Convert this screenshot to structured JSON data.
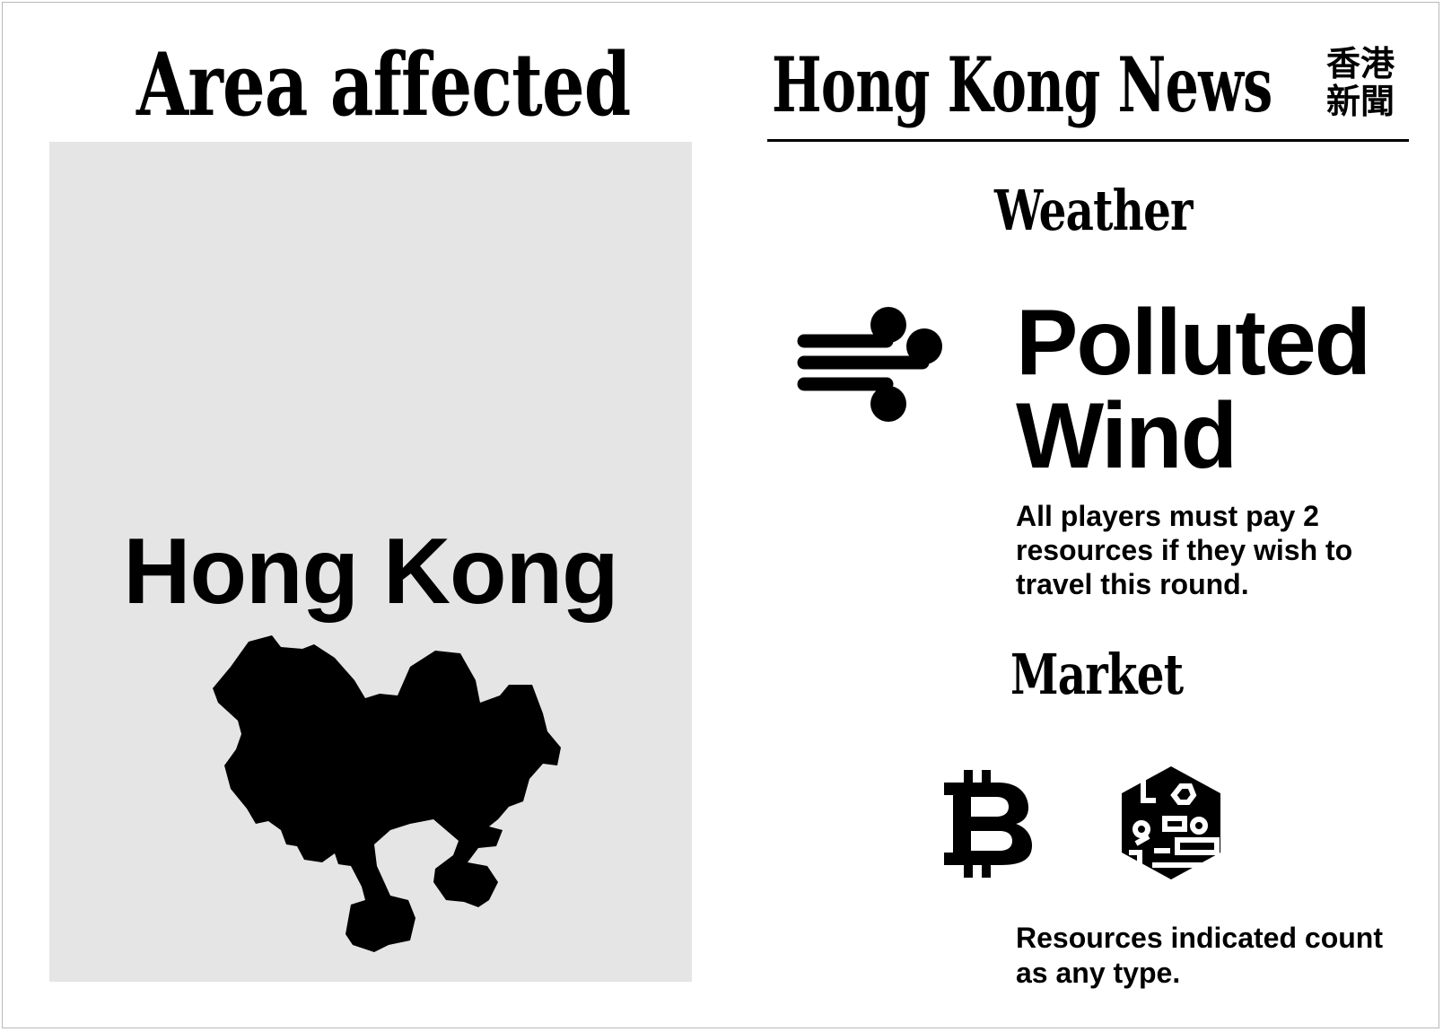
{
  "left_panel": {
    "title": "Area affected",
    "map_label": "Hong Kong",
    "map_icon": "hong-kong-map-silhouette"
  },
  "news": {
    "title": "Hong Kong News",
    "title_cjk": "香港新聞"
  },
  "weather": {
    "heading": "Weather",
    "icon": "wind-icon",
    "event_name": "Polluted Wind",
    "description": "All players must pay 2 resources if they wish to travel this round."
  },
  "market": {
    "heading": "Market",
    "icons": [
      "bitcoin-icon",
      "tech-resource-hexagon-icon"
    ],
    "note": "Resources indicated count as any type."
  }
}
